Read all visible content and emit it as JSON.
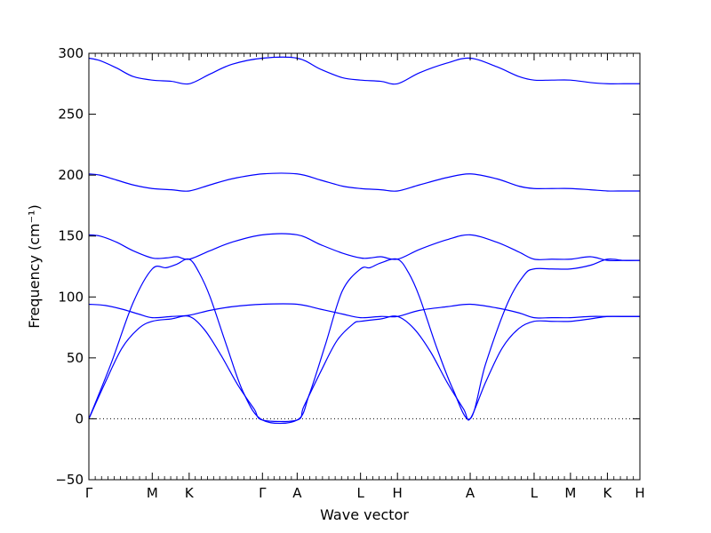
{
  "chart_data": {
    "type": "line",
    "title": "",
    "xlabel": "Wave vector",
    "ylabel": "Frequency (cm⁻¹)",
    "ylim": [
      -50,
      300
    ],
    "yticks": [
      -50,
      0,
      50,
      100,
      150,
      200,
      250,
      300
    ],
    "ytick_labels": [
      "−50",
      "0",
      "50",
      "100",
      "150",
      "200",
      "250",
      "300"
    ],
    "xlim": [
      0,
      1
    ],
    "xticks": [
      {
        "label": "Γ",
        "x": 0.0
      },
      {
        "label": "M",
        "x": 0.115
      },
      {
        "label": "K",
        "x": 0.182
      },
      {
        "label": "Γ",
        "x": 0.315
      },
      {
        "label": "A",
        "x": 0.378
      },
      {
        "label": "L",
        "x": 0.493
      },
      {
        "label": "H",
        "x": 0.56
      },
      {
        "label": "A",
        "x": 0.692
      },
      {
        "label": "L",
        "x": 0.808
      },
      {
        "label": "M",
        "x": 0.874
      },
      {
        "label": "K",
        "x": 0.941
      },
      {
        "label": "H",
        "x": 1.0
      }
    ],
    "grid": false,
    "legend": "none",
    "zero_line": "dotted",
    "line_color": "#0000ff",
    "series": [
      {
        "x": [
          0,
          0.02,
          0.05,
          0.08,
          0.115,
          0.15,
          0.182,
          0.22,
          0.26,
          0.315,
          0.378,
          0.42,
          0.46,
          0.493,
          0.53,
          0.56,
          0.6,
          0.65,
          0.692,
          0.74,
          0.78,
          0.808,
          0.84,
          0.874,
          0.91,
          0.941,
          0.97,
          1.0
        ],
        "values": [
          296,
          294,
          288,
          281,
          278,
          277,
          275,
          283,
          291,
          296,
          296,
          287,
          280,
          278,
          277,
          275,
          284,
          292,
          296,
          289,
          281,
          278,
          278,
          278,
          276,
          275,
          275,
          275
        ]
      },
      {
        "x": [
          0,
          0.02,
          0.05,
          0.08,
          0.115,
          0.15,
          0.182,
          0.22,
          0.26,
          0.315,
          0.378,
          0.42,
          0.46,
          0.493,
          0.53,
          0.56,
          0.6,
          0.65,
          0.692,
          0.74,
          0.78,
          0.808,
          0.84,
          0.874,
          0.91,
          0.941,
          0.97,
          1.0
        ],
        "values": [
          201,
          200,
          196,
          192,
          189,
          188,
          187,
          192,
          197,
          201,
          201,
          196,
          191,
          189,
          188,
          187,
          192,
          198,
          201,
          197,
          191,
          189,
          189,
          189,
          188,
          187,
          187,
          187
        ]
      },
      {
        "x": [
          0,
          0.02,
          0.05,
          0.08,
          0.115,
          0.14,
          0.16,
          0.182,
          0.22,
          0.26,
          0.315,
          0.378,
          0.42,
          0.46,
          0.493,
          0.51,
          0.53,
          0.56,
          0.6,
          0.65,
          0.692,
          0.74,
          0.78,
          0.808,
          0.84,
          0.874,
          0.91,
          0.941,
          0.97,
          1.0
        ],
        "values": [
          151,
          150,
          145,
          138,
          132,
          132,
          133,
          131,
          138,
          145,
          151,
          151,
          143,
          136,
          132,
          132,
          133,
          131,
          139,
          147,
          151,
          145,
          137,
          131,
          131,
          131,
          133,
          130,
          130,
          130
        ]
      },
      {
        "x": [
          0,
          0.04,
          0.08,
          0.115,
          0.14,
          0.16,
          0.182,
          0.2,
          0.22,
          0.25,
          0.28,
          0.315,
          0.378,
          0.4,
          0.43,
          0.46,
          0.493,
          0.51,
          0.53,
          0.56,
          0.58,
          0.6,
          0.63,
          0.66,
          0.692,
          0.72,
          0.76,
          0.79,
          0.808,
          0.84,
          0.874,
          0.91,
          0.941,
          0.97,
          1.0
        ],
        "values": [
          0,
          45,
          95,
          123,
          124,
          127,
          131,
          120,
          100,
          60,
          22,
          -1,
          -1,
          20,
          62,
          105,
          123,
          124,
          128,
          131,
          120,
          100,
          60,
          25,
          0,
          45,
          95,
          118,
          123,
          123,
          123,
          126,
          131,
          130,
          130
        ]
      },
      {
        "x": [
          0,
          0.03,
          0.06,
          0.09,
          0.115,
          0.15,
          0.182,
          0.22,
          0.26,
          0.315,
          0.378,
          0.42,
          0.46,
          0.493,
          0.53,
          0.56,
          0.6,
          0.65,
          0.692,
          0.74,
          0.78,
          0.808,
          0.84,
          0.874,
          0.91,
          0.941,
          0.97,
          1.0
        ],
        "values": [
          94,
          93,
          90,
          86,
          83,
          84,
          85,
          89,
          92,
          94,
          94,
          90,
          86,
          83,
          84,
          84,
          89,
          92,
          94,
          91,
          87,
          83,
          83,
          83,
          84,
          84,
          84,
          84
        ]
      },
      {
        "x": [
          0,
          0.03,
          0.06,
          0.09,
          0.115,
          0.15,
          0.182,
          0.21,
          0.24,
          0.27,
          0.3,
          0.315,
          0.378,
          0.39,
          0.42,
          0.45,
          0.48,
          0.493,
          0.53,
          0.56,
          0.59,
          0.62,
          0.65,
          0.68,
          0.692,
          0.72,
          0.75,
          0.78,
          0.808,
          0.84,
          0.874,
          0.91,
          0.941,
          0.97,
          1.0
        ],
        "values": [
          0,
          30,
          58,
          74,
          80,
          82,
          84,
          73,
          52,
          28,
          8,
          -1,
          -1,
          10,
          38,
          64,
          78,
          80,
          82,
          84,
          74,
          55,
          30,
          8,
          0,
          30,
          58,
          74,
          80,
          80,
          80,
          82,
          84,
          84,
          84
        ]
      }
    ]
  }
}
